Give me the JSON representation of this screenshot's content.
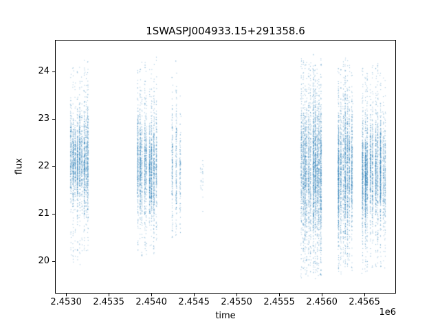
{
  "figure": {
    "background": "#ffffff"
  },
  "chart_data": {
    "type": "scatter",
    "title": "1SWASPJ004933.15+291358.6",
    "xlabel": "time",
    "ylabel": "flux",
    "x_offset_label": "1e6",
    "xlim": [
      2452870,
      2456870
    ],
    "ylim": [
      19.32,
      24.67
    ],
    "x_ticks": [
      {
        "value": 2453000,
        "label": "2.4530"
      },
      {
        "value": 2453500,
        "label": "2.4535"
      },
      {
        "value": 2454000,
        "label": "2.4540"
      },
      {
        "value": 2454500,
        "label": "2.4545"
      },
      {
        "value": 2455000,
        "label": "2.4550"
      },
      {
        "value": 2455500,
        "label": "2.4555"
      },
      {
        "value": 2456000,
        "label": "2.4560"
      },
      {
        "value": 2456500,
        "label": "2.4565"
      }
    ],
    "y_ticks": [
      {
        "value": 20,
        "label": "20"
      },
      {
        "value": 21,
        "label": "21"
      },
      {
        "value": 22,
        "label": "22"
      },
      {
        "value": 23,
        "label": "23"
      },
      {
        "value": 24,
        "label": "24"
      }
    ],
    "grid": false,
    "legend": null,
    "marker_color": "#1f77b4",
    "marker_alpha": 0.5,
    "seed": 42,
    "clusters": [
      {
        "t_min": 2453030,
        "t_max": 2453260,
        "nights": 9,
        "n": 2400,
        "flux_mu": 22.15,
        "flux_sigma": 0.5,
        "flux_min": 19.85,
        "flux_max": 24.35,
        "tail_frac": 0.1
      },
      {
        "t_min": 2453810,
        "t_max": 2454060,
        "nights": 9,
        "n": 2200,
        "flux_mu": 22.0,
        "flux_sigma": 0.52,
        "flux_min": 20.1,
        "flux_max": 24.45,
        "tail_frac": 0.1
      },
      {
        "t_min": 2454220,
        "t_max": 2454340,
        "nights": 3,
        "n": 550,
        "flux_mu": 22.0,
        "flux_sigma": 0.6,
        "flux_min": 20.3,
        "flux_max": 24.45,
        "tail_frac": 0.12
      },
      {
        "t_min": 2454550,
        "t_max": 2454615,
        "nights": 2,
        "n": 35,
        "flux_mu": 21.8,
        "flux_sigma": 0.35,
        "flux_min": 20.9,
        "flux_max": 22.4,
        "tail_frac": 0.1
      },
      {
        "t_min": 2455730,
        "t_max": 2455990,
        "nights": 11,
        "n": 4200,
        "flux_mu": 21.95,
        "flux_sigma": 0.72,
        "flux_min": 19.55,
        "flux_max": 24.45,
        "tail_frac": 0.18
      },
      {
        "t_min": 2456170,
        "t_max": 2456355,
        "nights": 7,
        "n": 2600,
        "flux_mu": 21.9,
        "flux_sigma": 0.68,
        "flux_min": 19.6,
        "flux_max": 24.4,
        "tail_frac": 0.16
      },
      {
        "t_min": 2456450,
        "t_max": 2456750,
        "nights": 10,
        "n": 3600,
        "flux_mu": 21.95,
        "flux_sigma": 0.62,
        "flux_min": 19.7,
        "flux_max": 24.3,
        "tail_frac": 0.15
      }
    ]
  }
}
